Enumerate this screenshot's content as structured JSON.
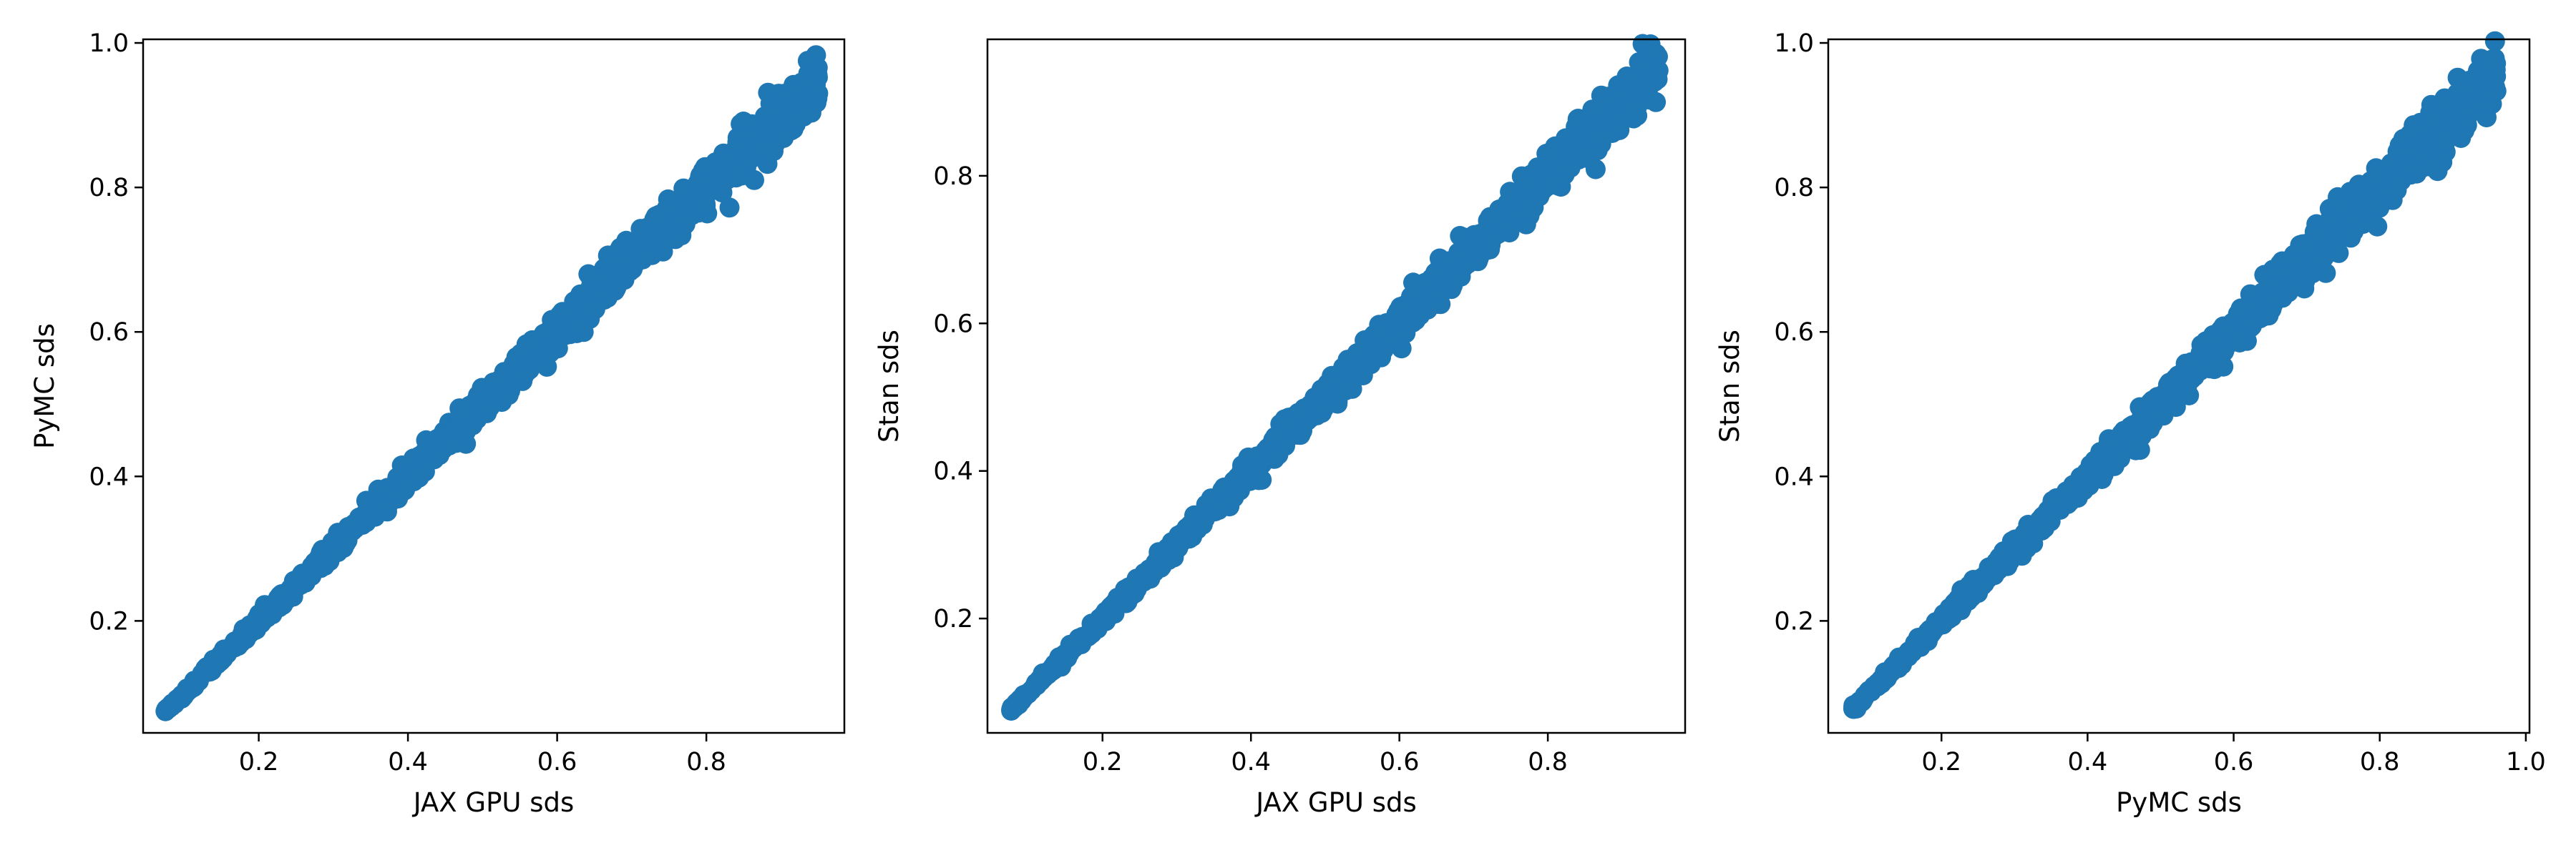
{
  "chart_data": [
    {
      "type": "scatter",
      "xlabel": "JAX GPU sds",
      "ylabel": "PyMC sds",
      "xlim": [
        0.045,
        0.985
      ],
      "ylim": [
        0.045,
        1.005
      ],
      "xticks": [
        0.2,
        0.4,
        0.6,
        0.8
      ],
      "xtick_labels": [
        "0.2",
        "0.4",
        "0.6",
        "0.8"
      ],
      "yticks": [
        0.2,
        0.4,
        0.6,
        0.8,
        1.0
      ],
      "ytick_labels": [
        "0.2",
        "0.4",
        "0.6",
        "0.8",
        "1.0"
      ],
      "grid": false,
      "reference_line": [
        [
          0.075,
          0.075
        ],
        [
          0.955,
          0.955
        ]
      ],
      "point_cloud": {
        "x_min": 0.075,
        "x_max": 0.95,
        "count": 1200,
        "spread": 0.045
      }
    },
    {
      "type": "scatter",
      "xlabel": "JAX GPU sds",
      "ylabel": "Stan sds",
      "xlim": [
        0.045,
        0.985
      ],
      "ylim": [
        0.045,
        0.985
      ],
      "xticks": [
        0.2,
        0.4,
        0.6,
        0.8
      ],
      "xtick_labels": [
        "0.2",
        "0.4",
        "0.6",
        "0.8"
      ],
      "yticks": [
        0.2,
        0.4,
        0.6,
        0.8
      ],
      "ytick_labels": [
        "0.2",
        "0.4",
        "0.6",
        "0.8"
      ],
      "grid": false,
      "reference_line": [
        [
          0.075,
          0.075
        ],
        [
          0.955,
          0.955
        ]
      ],
      "point_cloud": {
        "x_min": 0.075,
        "x_max": 0.95,
        "count": 1200,
        "spread": 0.045
      }
    },
    {
      "type": "scatter",
      "xlabel": "PyMC sds",
      "ylabel": "Stan sds",
      "xlim": [
        0.045,
        1.005
      ],
      "ylim": [
        0.045,
        1.005
      ],
      "xticks": [
        0.2,
        0.4,
        0.6,
        0.8,
        1.0
      ],
      "xtick_labels": [
        "0.2",
        "0.4",
        "0.6",
        "0.8",
        "1.0"
      ],
      "yticks": [
        0.2,
        0.4,
        0.6,
        0.8,
        1.0
      ],
      "ytick_labels": [
        "0.2",
        "0.4",
        "0.6",
        "0.8",
        "1.0"
      ],
      "grid": false,
      "reference_line": [
        [
          0.075,
          0.075
        ],
        [
          0.965,
          0.965
        ]
      ],
      "point_cloud": {
        "x_min": 0.075,
        "x_max": 0.96,
        "count": 1200,
        "spread": 0.05
      }
    }
  ],
  "colors": {
    "points": "#1f77b4",
    "reference_line": "#1f77b4",
    "axes": "#000000",
    "background": "#ffffff"
  }
}
